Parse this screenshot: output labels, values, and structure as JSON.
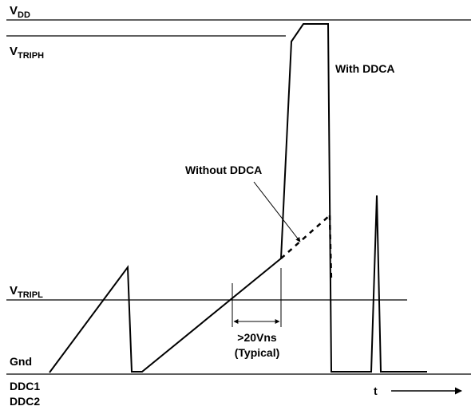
{
  "labels": {
    "vdd_main": "V",
    "vdd_sub": "DD",
    "vtriph_main": "V",
    "vtriph_sub": "TRIPH",
    "vtripl_main": "V",
    "vtripl_sub": "TRIPL",
    "gnd": "Gnd",
    "ddc1": "DDC1",
    "ddc2": "DDC2",
    "t_axis": "t",
    "with_ddca": "With DDCA",
    "without_ddca": "Without DDCA",
    "timing_line1": ">20Vns",
    "timing_line2": "(Typical)"
  }
}
